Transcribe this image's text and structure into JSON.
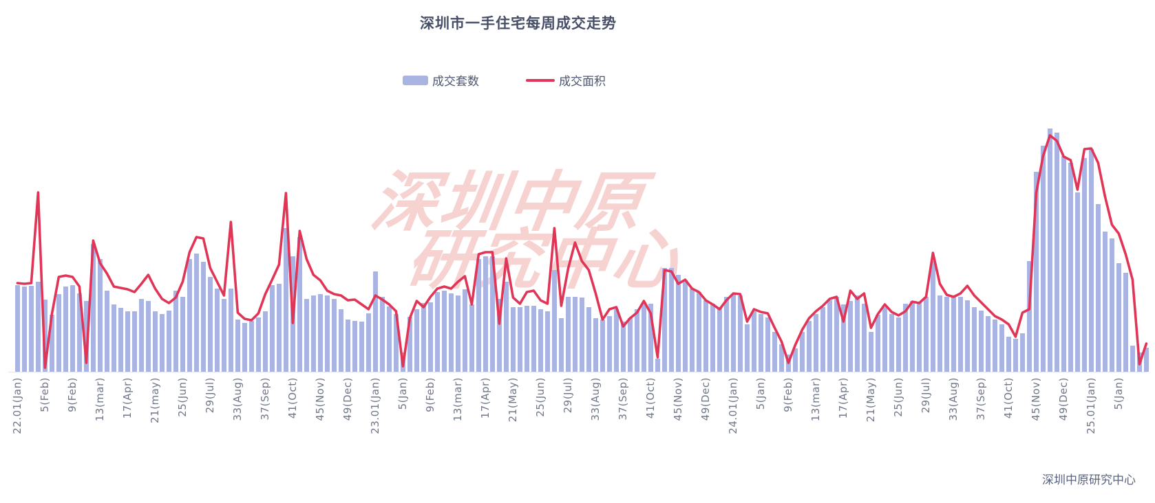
{
  "title": "深圳市一手住宅每周成交走势",
  "legend": [
    {
      "label": "成交套数",
      "type": "bar",
      "color": "#a9b4e2"
    },
    {
      "label": "成交面积",
      "type": "line",
      "color": "#e13557"
    }
  ],
  "watermark": {
    "line1": "深圳中原",
    "line2": "研究中心",
    "color": "rgba(238,166,163,0.5)"
  },
  "footer": {
    "source_label": "深圳中原研究中心"
  },
  "colors": {
    "bar": "#a9b4e2",
    "line": "#e13557",
    "title_text": "#474f68",
    "axis_label_text": "#6f7789",
    "axis_line": "#e4e4ee",
    "background": "#ffffff"
  },
  "chart_data": {
    "type": "bar",
    "subtype": "weekly bar series with overlaid line series",
    "title": "深圳市一手住宅每周成交走势",
    "xlabel": "",
    "ylabel": "",
    "note": "No y-axis scale is shown in the chart; values below are relative units estimated from rendered heights (baseline 0). X axis is weekly from week 1 of 2022 (22.01) to early 2025 (25.x); one tick label every 4 weeks.",
    "x_tick_every_n_points": 4,
    "x_tick_labels": [
      "22.01(Jan)",
      "5(Feb)",
      "9(Feb)",
      "13(mar)",
      "17(Apr)",
      "21(may)",
      "25(Jun)",
      "29(Jul)",
      "33(Aug)",
      "37(Sep)",
      "41(Oct)",
      "45(Nov)",
      "49(Dec)",
      "23.01(Jan)",
      "5(Jan)",
      "9(Feb)",
      "13(mar)",
      "17(Apr)",
      "21(May)",
      "25(Jun)",
      "29(Jul)",
      "33(Aug)",
      "37(Sep)",
      "41(Oct)",
      "45(Nov)",
      "49(Dec)",
      "24.01(Jan)",
      "5(Jan)",
      "9(Feb)",
      "13(mar)",
      "17(Apr)",
      "21(May)",
      "25(Jun)",
      "29(Jul)",
      "33(Aug)",
      "37(Sep)",
      "41(Oct)",
      "45(Nov)",
      "49(Dec)",
      "25.01(Jan)",
      "5(Jan)"
    ],
    "legend_position": "top-center",
    "grid": false,
    "series": [
      {
        "name": "成交套数",
        "type": "bar",
        "color": "#a9b4e2",
        "values": [
          126,
          124,
          125,
          131,
          105,
          83,
          113,
          124,
          126,
          114,
          103,
          186,
          164,
          118,
          98,
          93,
          88,
          88,
          106,
          103,
          88,
          84,
          89,
          118,
          109,
          164,
          172,
          160,
          138,
          121,
          106,
          121,
          76,
          71,
          74,
          79,
          88,
          126,
          128,
          209,
          168,
          196,
          106,
          111,
          113,
          111,
          106,
          91,
          76,
          74,
          73,
          85,
          146,
          109,
          95,
          84,
          28,
          80,
          91,
          100,
          101,
          116,
          118,
          114,
          111,
          120,
          98,
          164,
          168,
          168,
          106,
          131,
          94,
          94,
          96,
          96,
          91,
          88,
          148,
          78,
          109,
          109,
          108,
          94,
          78,
          76,
          81,
          91,
          73,
          78,
          91,
          101,
          99,
          19,
          151,
          151,
          141,
          133,
          121,
          116,
          104,
          99,
          94,
          109,
          113,
          111,
          69,
          88,
          84,
          79,
          58,
          40,
          25,
          34,
          58,
          74,
          84,
          94,
          104,
          109,
          98,
          103,
          111,
          99,
          58,
          83,
          94,
          84,
          79,
          99,
          103,
          101,
          109,
          161,
          111,
          109,
          111,
          109,
          104,
          94,
          89,
          81,
          76,
          69,
          51,
          48,
          56,
          161,
          291,
          329,
          354,
          348,
          314,
          304,
          261,
          311,
          324,
          244,
          204,
          194,
          158,
          144,
          38,
          28,
          35
        ]
      },
      {
        "name": "成交面积",
        "type": "line",
        "color": "#e13557",
        "values": [
          129,
          128,
          129,
          261,
          6,
          84,
          138,
          140,
          138,
          124,
          13,
          191,
          158,
          143,
          124,
          122,
          120,
          116,
          128,
          141,
          121,
          106,
          100,
          108,
          131,
          174,
          196,
          194,
          151,
          131,
          111,
          218,
          86,
          77,
          75,
          85,
          113,
          134,
          156,
          260,
          71,
          205,
          164,
          141,
          133,
          118,
          113,
          111,
          104,
          105,
          98,
          91,
          111,
          105,
          98,
          88,
          8,
          78,
          103,
          94,
          109,
          121,
          124,
          121,
          131,
          139,
          98,
          171,
          174,
          174,
          70,
          165,
          108,
          99,
          116,
          118,
          104,
          99,
          209,
          96,
          150,
          188,
          161,
          148,
          114,
          76,
          91,
          94,
          66,
          78,
          86,
          103,
          85,
          21,
          148,
          146,
          128,
          134,
          121,
          116,
          104,
          98,
          91,
          104,
          114,
          113,
          73,
          91,
          87,
          85,
          64,
          44,
          13,
          39,
          61,
          78,
          88,
          96,
          106,
          109,
          73,
          118,
          106,
          114,
          64,
          84,
          98,
          87,
          82,
          88,
          102,
          100,
          109,
          173,
          128,
          112,
          109,
          114,
          125,
          111,
          101,
          91,
          81,
          76,
          69,
          51,
          86,
          91,
          260,
          314,
          344,
          336,
          313,
          308,
          265,
          324,
          325,
          304,
          255,
          214,
          201,
          171,
          134,
          11,
          41
        ]
      }
    ],
    "layout": {
      "baseline_y": 541,
      "bar_pitch": 10,
      "bar_width": 6.8,
      "first_bar_x": 22
    }
  }
}
